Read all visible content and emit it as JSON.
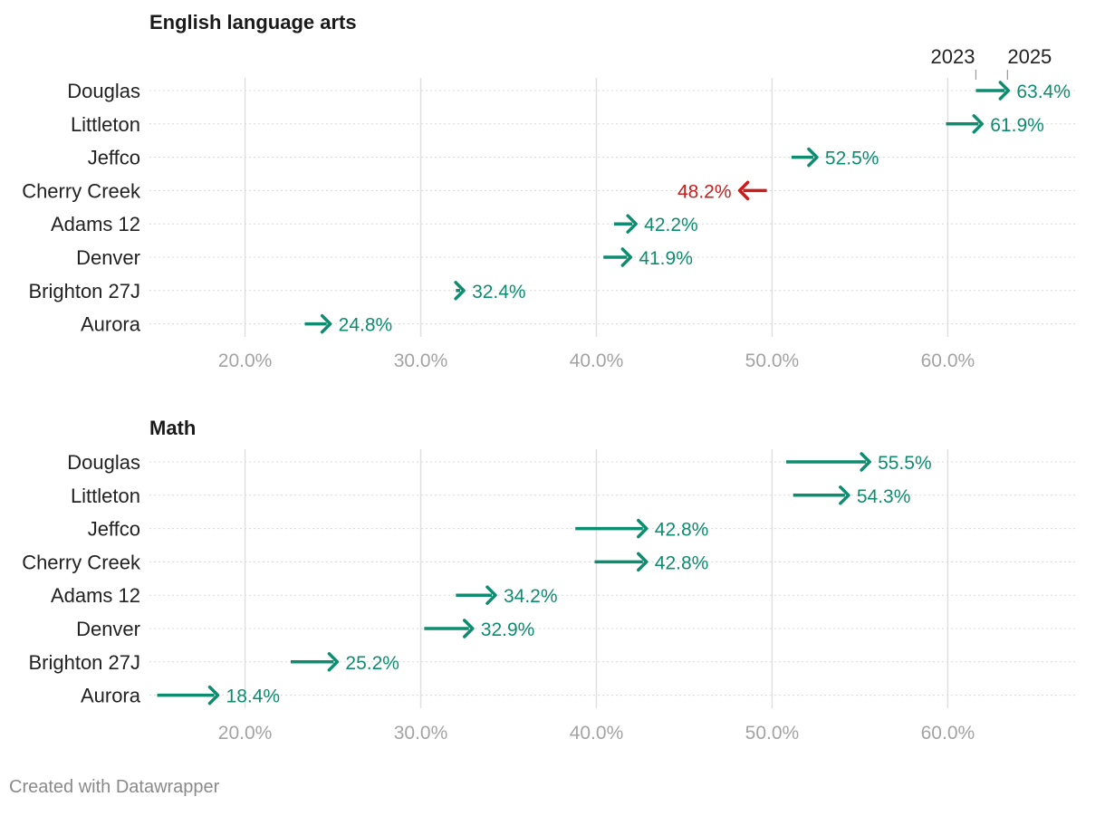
{
  "chart_data": [
    {
      "type": "arrow",
      "title": "English language arts",
      "categories": [
        "Douglas",
        "Littleton",
        "Jeffco",
        "Cherry Creek",
        "Adams 12",
        "Denver",
        "Brighton 27J",
        "Aurora"
      ],
      "series": [
        {
          "name": "2023",
          "values": [
            61.6,
            59.9,
            51.1,
            49.7,
            41.0,
            40.4,
            32.0,
            23.4
          ]
        },
        {
          "name": "2025",
          "values": [
            63.4,
            61.9,
            52.5,
            48.2,
            42.2,
            41.9,
            32.4,
            24.8
          ]
        }
      ],
      "value_labels": [
        "63.4%",
        "61.9%",
        "52.5%",
        "48.2%",
        "42.2%",
        "41.9%",
        "32.4%",
        "24.8%"
      ],
      "xlim": [
        14.3,
        67.3
      ],
      "ticks": [
        20,
        30,
        40,
        50,
        60
      ],
      "tick_labels": [
        "20.0%",
        "30.0%",
        "40.0%",
        "50.0%",
        "60.0%"
      ],
      "legend": [
        "2023",
        "2025"
      ],
      "grid": true
    },
    {
      "type": "arrow",
      "title": "Math",
      "categories": [
        "Douglas",
        "Littleton",
        "Jeffco",
        "Cherry Creek",
        "Adams 12",
        "Denver",
        "Brighton 27J",
        "Aurora"
      ],
      "series": [
        {
          "name": "2023",
          "values": [
            50.8,
            51.2,
            38.8,
            39.9,
            32.0,
            30.2,
            22.6,
            15.0
          ]
        },
        {
          "name": "2025",
          "values": [
            55.5,
            54.3,
            42.8,
            42.8,
            34.2,
            32.9,
            25.2,
            18.4
          ]
        }
      ],
      "value_labels": [
        "55.5%",
        "54.3%",
        "42.8%",
        "42.8%",
        "34.2%",
        "32.9%",
        "25.2%",
        "18.4%"
      ],
      "xlim": [
        14.3,
        67.3
      ],
      "ticks": [
        20,
        30,
        40,
        50,
        60
      ],
      "tick_labels": [
        "20.0%",
        "30.0%",
        "40.0%",
        "50.0%",
        "60.0%"
      ],
      "grid": true
    }
  ],
  "colors": {
    "increase": "#0e8c6f",
    "decrease": "#c71e1d",
    "grid": "#e0e0e0",
    "row_line": "#d8d8d8"
  },
  "credit": "Created with Datawrapper"
}
